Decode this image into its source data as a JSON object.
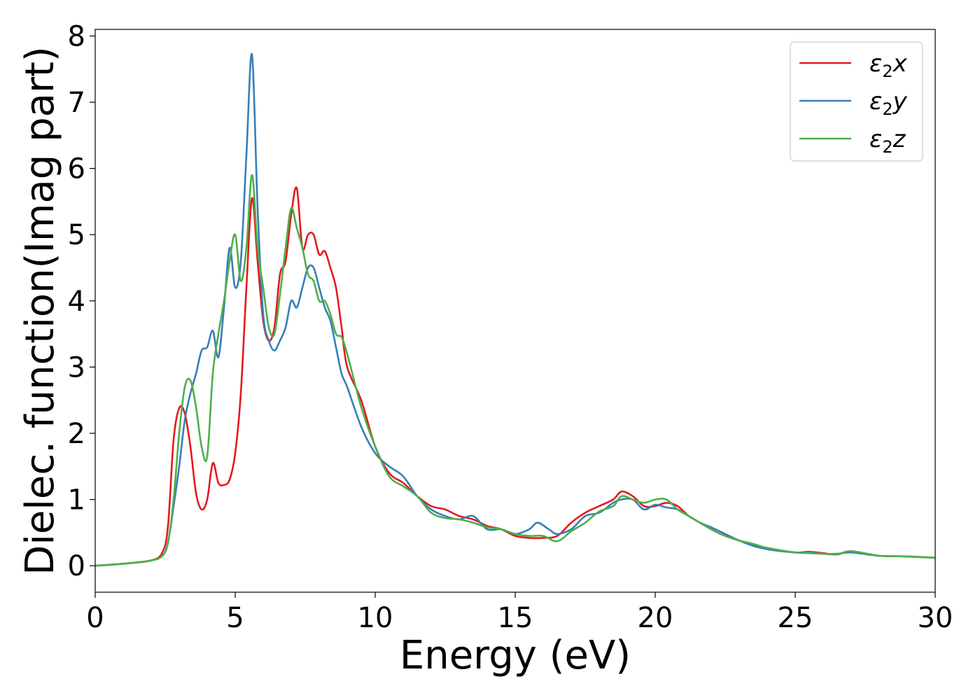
{
  "chart_data": {
    "type": "line",
    "xlabel": "Energy (eV)",
    "ylabel": "Dielec. function(Imag part)",
    "xlim": [
      0,
      30
    ],
    "ylim": [
      -0.4,
      8.1
    ],
    "xticks": [
      0,
      5,
      10,
      15,
      20,
      25,
      30
    ],
    "yticks": [
      0,
      1,
      2,
      3,
      4,
      5,
      6,
      7,
      8
    ],
    "legend_position": "top-right",
    "grid": false,
    "series": [
      {
        "name": "ε2x",
        "legend_main": "ε",
        "legend_sub": "2",
        "legend_suffix": "x",
        "color": "#e41a1c",
        "x": [
          0,
          1,
          2,
          2.4,
          2.6,
          2.8,
          3.0,
          3.2,
          3.4,
          3.6,
          3.8,
          4.0,
          4.2,
          4.4,
          4.6,
          4.8,
          5.0,
          5.2,
          5.4,
          5.6,
          5.8,
          6.0,
          6.2,
          6.4,
          6.6,
          6.8,
          7.0,
          7.2,
          7.4,
          7.6,
          7.8,
          8.0,
          8.2,
          8.4,
          8.6,
          8.8,
          9.0,
          9.5,
          10.0,
          10.5,
          11.0,
          11.5,
          12.0,
          12.5,
          13.0,
          13.5,
          14.0,
          14.5,
          15.0,
          15.5,
          16.0,
          16.5,
          17.0,
          17.5,
          18.0,
          18.5,
          18.8,
          19.2,
          19.6,
          20.0,
          20.4,
          20.8,
          21.2,
          21.6,
          22.0,
          22.5,
          23.0,
          23.5,
          24.0,
          25.0,
          25.5,
          26.0,
          26.5,
          27.0,
          28.0,
          29.0,
          30.0
        ],
        "y": [
          0.0,
          0.03,
          0.08,
          0.2,
          0.6,
          1.9,
          2.38,
          2.3,
          1.8,
          1.1,
          0.85,
          1.0,
          1.55,
          1.25,
          1.22,
          1.3,
          1.7,
          2.6,
          4.2,
          5.55,
          4.6,
          3.7,
          3.4,
          3.6,
          4.4,
          4.6,
          5.3,
          5.7,
          4.8,
          5.0,
          5.0,
          4.7,
          4.75,
          4.5,
          4.2,
          3.6,
          3.0,
          2.5,
          1.8,
          1.4,
          1.25,
          1.05,
          0.9,
          0.85,
          0.75,
          0.7,
          0.6,
          0.55,
          0.45,
          0.42,
          0.42,
          0.45,
          0.65,
          0.8,
          0.9,
          1.0,
          1.12,
          1.05,
          0.9,
          0.9,
          0.95,
          0.9,
          0.75,
          0.65,
          0.55,
          0.45,
          0.38,
          0.32,
          0.25,
          0.2,
          0.21,
          0.19,
          0.17,
          0.22,
          0.15,
          0.14,
          0.12
        ]
      },
      {
        "name": "ε2y",
        "legend_main": "ε",
        "legend_sub": "2",
        "legend_suffix": "y",
        "color": "#377eb8",
        "x": [
          0,
          1,
          2,
          2.4,
          2.6,
          2.8,
          3.0,
          3.2,
          3.4,
          3.6,
          3.8,
          4.0,
          4.2,
          4.4,
          4.6,
          4.8,
          5.0,
          5.2,
          5.4,
          5.6,
          5.8,
          6.0,
          6.2,
          6.4,
          6.6,
          6.8,
          7.0,
          7.2,
          7.4,
          7.6,
          7.8,
          8.0,
          8.2,
          8.4,
          8.6,
          8.8,
          9.0,
          9.5,
          10.0,
          10.5,
          11.0,
          11.5,
          12.0,
          12.5,
          13.0,
          13.5,
          14.0,
          14.5,
          15.0,
          15.5,
          15.8,
          16.2,
          16.5,
          17.0,
          17.5,
          18.0,
          18.5,
          18.8,
          19.2,
          19.6,
          20.0,
          20.4,
          20.8,
          21.2,
          21.6,
          22.0,
          22.5,
          23.0,
          23.5,
          24.0,
          25.0,
          25.5,
          26.0,
          26.5,
          27.0,
          28.0,
          29.0,
          30.0
        ],
        "y": [
          0.0,
          0.03,
          0.08,
          0.15,
          0.35,
          0.9,
          1.5,
          2.2,
          2.6,
          2.9,
          3.25,
          3.3,
          3.55,
          3.15,
          3.9,
          4.8,
          4.2,
          4.6,
          6.2,
          7.72,
          5.4,
          3.8,
          3.4,
          3.25,
          3.4,
          3.6,
          4.0,
          3.9,
          4.2,
          4.5,
          4.5,
          4.2,
          3.9,
          3.7,
          3.3,
          2.9,
          2.7,
          2.1,
          1.7,
          1.5,
          1.35,
          1.05,
          0.85,
          0.75,
          0.7,
          0.75,
          0.55,
          0.55,
          0.48,
          0.55,
          0.65,
          0.55,
          0.48,
          0.55,
          0.75,
          0.8,
          0.95,
          1.0,
          1.0,
          0.85,
          0.92,
          0.88,
          0.85,
          0.75,
          0.65,
          0.58,
          0.48,
          0.38,
          0.3,
          0.25,
          0.2,
          0.2,
          0.18,
          0.18,
          0.2,
          0.15,
          0.14,
          0.12
        ]
      },
      {
        "name": "ε2z",
        "legend_main": "ε",
        "legend_sub": "2",
        "legend_suffix": "z",
        "color": "#4daf4a",
        "x": [
          0,
          1,
          2,
          2.4,
          2.6,
          2.8,
          3.0,
          3.2,
          3.4,
          3.6,
          3.8,
          4.0,
          4.2,
          4.4,
          4.6,
          4.8,
          5.0,
          5.2,
          5.4,
          5.6,
          5.8,
          6.0,
          6.2,
          6.4,
          6.6,
          6.8,
          7.0,
          7.2,
          7.4,
          7.6,
          7.8,
          8.0,
          8.2,
          8.4,
          8.6,
          8.8,
          9.0,
          9.5,
          10.0,
          10.5,
          11.0,
          11.5,
          12.0,
          12.5,
          13.0,
          13.5,
          14.0,
          14.5,
          15.0,
          15.5,
          16.0,
          16.5,
          17.0,
          17.5,
          18.0,
          18.5,
          18.8,
          19.2,
          19.6,
          20.0,
          20.4,
          20.8,
          21.2,
          21.6,
          22.0,
          22.5,
          23.0,
          23.5,
          24.0,
          25.0,
          25.5,
          26.0,
          26.5,
          27.0,
          28.0,
          29.0,
          30.0
        ],
        "y": [
          0.0,
          0.03,
          0.08,
          0.15,
          0.35,
          1.0,
          2.0,
          2.7,
          2.8,
          2.4,
          1.8,
          1.65,
          2.9,
          3.5,
          4.0,
          4.6,
          5.0,
          4.3,
          4.8,
          5.9,
          4.8,
          4.2,
          3.6,
          3.5,
          4.1,
          4.8,
          5.4,
          5.1,
          4.8,
          4.4,
          4.3,
          4.0,
          4.0,
          3.8,
          3.5,
          3.45,
          3.2,
          2.4,
          1.8,
          1.35,
          1.2,
          1.05,
          0.8,
          0.72,
          0.7,
          0.65,
          0.58,
          0.55,
          0.48,
          0.45,
          0.45,
          0.37,
          0.52,
          0.65,
          0.82,
          0.9,
          1.05,
          1.0,
          0.95,
          1.0,
          1.0,
          0.85,
          0.75,
          0.65,
          0.55,
          0.45,
          0.38,
          0.33,
          0.27,
          0.2,
          0.19,
          0.18,
          0.17,
          0.22,
          0.15,
          0.14,
          0.12
        ]
      }
    ]
  }
}
